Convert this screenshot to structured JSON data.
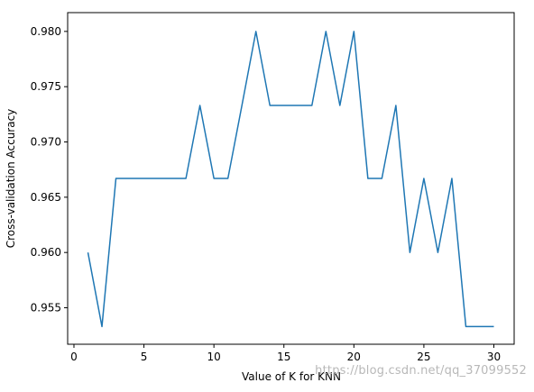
{
  "chart_data": {
    "type": "line",
    "title": "",
    "xlabel": "Value of K for KNN",
    "ylabel": "Cross-validation Accuracy",
    "xlim": [
      -0.45,
      31.45
    ],
    "ylim": [
      0.9517,
      0.9817
    ],
    "xticks": [
      0,
      5,
      10,
      15,
      20,
      25,
      30
    ],
    "yticks": [
      0.955,
      0.96,
      0.965,
      0.97,
      0.975,
      0.98
    ],
    "ytick_labels": [
      "0.955",
      "0.960",
      "0.965",
      "0.970",
      "0.975",
      "0.980"
    ],
    "grid": false,
    "legend": "none",
    "color": "#1f77b4",
    "series": [
      {
        "x": [
          1,
          2,
          3,
          4,
          5,
          6,
          7,
          8,
          9,
          10,
          11,
          12,
          13,
          14,
          15,
          16,
          17,
          18,
          19,
          20,
          21,
          22,
          23,
          24,
          25,
          26,
          27,
          28,
          29,
          30
        ],
        "values": [
          0.96,
          0.9533,
          0.9667,
          0.9667,
          0.9667,
          0.9667,
          0.9667,
          0.9667,
          0.9733,
          0.9667,
          0.9667,
          0.9733,
          0.98,
          0.9733,
          0.9733,
          0.9733,
          0.9733,
          0.98,
          0.9733,
          0.98,
          0.9667,
          0.9667,
          0.9733,
          0.96,
          0.9667,
          0.96,
          0.9667,
          0.9533,
          0.9533,
          0.9533
        ]
      }
    ]
  },
  "watermark": "https://blog.csdn.net/qq_37099552"
}
